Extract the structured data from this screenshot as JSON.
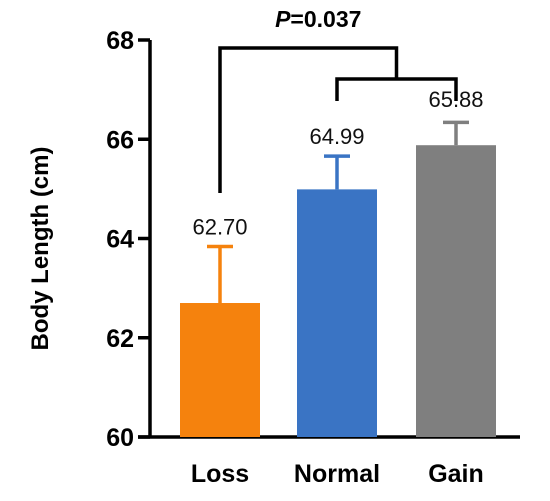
{
  "chart_data": {
    "type": "bar",
    "categories": [
      "Loss",
      "Normal",
      "Gain"
    ],
    "values": [
      62.7,
      64.99,
      65.88
    ],
    "errors": [
      1.14,
      0.67,
      0.46
    ],
    "data_labels": [
      "62.70",
      "64.99",
      "65.88"
    ],
    "colors": [
      "#f5820d",
      "#3a74c4",
      "#7f7f7f"
    ],
    "ylabel": "Body Length (cm)",
    "ylim": [
      60,
      68
    ],
    "yticks": [
      "60",
      "62",
      "64",
      "66",
      "68"
    ],
    "grid": false,
    "significance": {
      "label_prefix": "P",
      "label_value": "=0.037"
    }
  }
}
